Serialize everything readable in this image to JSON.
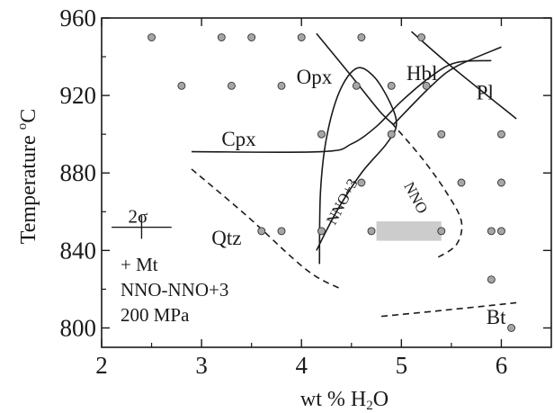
{
  "chart_data": {
    "type": "scatter",
    "title": "",
    "xlabel": "wt % H₂O",
    "xlabel_main": "wt % H",
    "xlabel_sub": "2",
    "xlabel_end": "O",
    "ylabel": "Temperature °C",
    "ylabel_main": "Temperature ",
    "ylabel_deg": "o",
    "ylabel_end": "C",
    "xlim": [
      2,
      6.5
    ],
    "ylim": [
      790,
      960
    ],
    "xticks": [
      2,
      3,
      4,
      5,
      6
    ],
    "yticks": [
      800,
      840,
      880,
      920,
      960
    ],
    "x_tick_labels": [
      "2",
      "3",
      "4",
      "5",
      "6"
    ],
    "y_tick_labels": [
      "800",
      "840",
      "880",
      "920",
      "960"
    ],
    "grid": false,
    "points": [
      {
        "x": 2.5,
        "y": 950
      },
      {
        "x": 3.2,
        "y": 950
      },
      {
        "x": 3.5,
        "y": 950
      },
      {
        "x": 4.0,
        "y": 950
      },
      {
        "x": 4.6,
        "y": 950
      },
      {
        "x": 5.2,
        "y": 950
      },
      {
        "x": 2.8,
        "y": 925
      },
      {
        "x": 3.3,
        "y": 925
      },
      {
        "x": 3.8,
        "y": 925
      },
      {
        "x": 4.55,
        "y": 925
      },
      {
        "x": 4.9,
        "y": 925
      },
      {
        "x": 5.25,
        "y": 925
      },
      {
        "x": 4.2,
        "y": 900
      },
      {
        "x": 4.9,
        "y": 900
      },
      {
        "x": 5.4,
        "y": 900
      },
      {
        "x": 6.0,
        "y": 900
      },
      {
        "x": 4.6,
        "y": 875
      },
      {
        "x": 5.6,
        "y": 875
      },
      {
        "x": 6.0,
        "y": 875
      },
      {
        "x": 3.6,
        "y": 850
      },
      {
        "x": 3.8,
        "y": 850
      },
      {
        "x": 4.2,
        "y": 850
      },
      {
        "x": 4.7,
        "y": 850
      },
      {
        "x": 5.4,
        "y": 850
      },
      {
        "x": 5.9,
        "y": 850
      },
      {
        "x": 6.0,
        "y": 850
      },
      {
        "x": 5.9,
        "y": 825
      },
      {
        "x": 6.1,
        "y": 800
      }
    ],
    "curves": [
      {
        "name": "Opx",
        "style": "solid",
        "points": [
          [
            4.18,
            833
          ],
          [
            4.19,
            870
          ],
          [
            4.25,
            898
          ],
          [
            4.38,
            922
          ],
          [
            4.55,
            934
          ],
          [
            4.72,
            930
          ],
          [
            4.88,
            917
          ],
          [
            4.95,
            905
          ],
          [
            4.85,
            895
          ],
          [
            4.6,
            880
          ],
          [
            4.35,
            860
          ],
          [
            4.15,
            840
          ]
        ]
      },
      {
        "name": "Cpx",
        "style": "solid",
        "points": [
          [
            2.9,
            891
          ],
          [
            4.2,
            891
          ],
          [
            4.5,
            895
          ],
          [
            4.75,
            904
          ],
          [
            5.0,
            917
          ],
          [
            5.3,
            930
          ],
          [
            5.55,
            937
          ],
          [
            5.9,
            938
          ]
        ]
      },
      {
        "name": "Hbl-1",
        "style": "solid",
        "points": [
          [
            4.15,
            952
          ],
          [
            4.5,
            930
          ],
          [
            4.78,
            912
          ],
          [
            4.92,
            905
          ]
        ]
      },
      {
        "name": "Hbl-2",
        "style": "solid",
        "points": [
          [
            4.92,
            905
          ],
          [
            5.3,
            925
          ],
          [
            5.55,
            935
          ],
          [
            6.0,
            945
          ]
        ]
      },
      {
        "name": "Pl",
        "style": "solid",
        "points": [
          [
            5.1,
            953
          ],
          [
            5.5,
            935
          ],
          [
            6.15,
            908
          ]
        ]
      },
      {
        "name": "Qtz",
        "style": "dashed",
        "points": [
          [
            2.9,
            882
          ],
          [
            3.45,
            858
          ],
          [
            4.05,
            830
          ],
          [
            4.4,
            820
          ]
        ]
      },
      {
        "name": "NNO",
        "style": "dashed",
        "points": [
          [
            4.9,
            906
          ],
          [
            5.2,
            888
          ],
          [
            5.45,
            870
          ],
          [
            5.6,
            855
          ],
          [
            5.55,
            843
          ],
          [
            5.35,
            836
          ]
        ]
      },
      {
        "name": "Bt",
        "style": "dashed",
        "points": [
          [
            4.8,
            806
          ],
          [
            5.4,
            809
          ],
          [
            6.15,
            813
          ]
        ]
      }
    ],
    "shaded_region": {
      "x": [
        4.75,
        5.4
      ],
      "y": [
        845,
        855
      ],
      "color": "#cccccc"
    },
    "error_bar": {
      "x": 2.4,
      "y": 852,
      "label": "2σ",
      "half_width": 0.3,
      "half_height": 6
    },
    "annotations": [
      {
        "text": "Opx",
        "x": 3.95,
        "y": 926
      },
      {
        "text": "Hbl",
        "x": 5.05,
        "y": 928
      },
      {
        "text": "Pl",
        "x": 5.75,
        "y": 918
      },
      {
        "text": "Cpx",
        "x": 3.2,
        "y": 894
      },
      {
        "text": "Qtz",
        "x": 3.1,
        "y": 843
      },
      {
        "text": "Bt",
        "x": 5.85,
        "y": 802
      },
      {
        "text": "NNO+3",
        "x": 4.45,
        "y": 864,
        "rotate": -62,
        "small": true
      },
      {
        "text": "NNO",
        "x": 5.1,
        "y": 866,
        "rotate": 62,
        "small": true
      }
    ],
    "notes": [
      "+ Mt",
      "NNO-NNO+3",
      "200 MPa"
    ]
  },
  "colors": {
    "axis": "#1a1a1a",
    "point_fill": "#a6a6a6",
    "point_stroke": "#333333",
    "shade": "#cccccc"
  }
}
